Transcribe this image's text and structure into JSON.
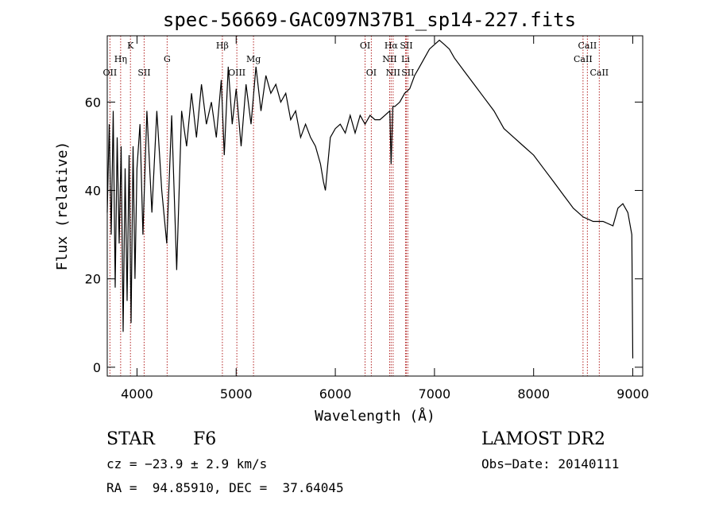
{
  "chart_data": {
    "type": "line",
    "title": "spec-56669-GAC097N37B1_sp14-227.fits",
    "xlabel": "Wavelength (Å)",
    "ylabel": "Flux (relative)",
    "xlim": [
      3700,
      9100
    ],
    "ylim": [
      -2,
      75
    ],
    "xticks": [
      4000,
      5000,
      6000,
      7000,
      8000,
      9000
    ],
    "yticks": [
      0,
      20,
      40,
      60
    ],
    "grid": false,
    "series": [
      {
        "color": "#000000",
        "points": [
          [
            3700,
            35
          ],
          [
            3720,
            55
          ],
          [
            3740,
            30
          ],
          [
            3760,
            58
          ],
          [
            3780,
            18
          ],
          [
            3800,
            52
          ],
          [
            3820,
            28
          ],
          [
            3840,
            50
          ],
          [
            3860,
            8
          ],
          [
            3880,
            45
          ],
          [
            3900,
            15
          ],
          [
            3920,
            48
          ],
          [
            3940,
            10
          ],
          [
            3960,
            50
          ],
          [
            3980,
            20
          ],
          [
            4000,
            45
          ],
          [
            4030,
            55
          ],
          [
            4060,
            30
          ],
          [
            4100,
            58
          ],
          [
            4150,
            35
          ],
          [
            4200,
            58
          ],
          [
            4250,
            40
          ],
          [
            4300,
            28
          ],
          [
            4350,
            57
          ],
          [
            4400,
            22
          ],
          [
            4450,
            58
          ],
          [
            4500,
            50
          ],
          [
            4550,
            62
          ],
          [
            4600,
            52
          ],
          [
            4650,
            64
          ],
          [
            4700,
            55
          ],
          [
            4750,
            60
          ],
          [
            4800,
            52
          ],
          [
            4850,
            65
          ],
          [
            4880,
            48
          ],
          [
            4920,
            68
          ],
          [
            4960,
            55
          ],
          [
            5000,
            63
          ],
          [
            5050,
            50
          ],
          [
            5100,
            64
          ],
          [
            5150,
            55
          ],
          [
            5200,
            68
          ],
          [
            5250,
            58
          ],
          [
            5300,
            66
          ],
          [
            5350,
            62
          ],
          [
            5400,
            64
          ],
          [
            5450,
            60
          ],
          [
            5500,
            62
          ],
          [
            5550,
            56
          ],
          [
            5600,
            58
          ],
          [
            5650,
            52
          ],
          [
            5700,
            55
          ],
          [
            5750,
            52
          ],
          [
            5800,
            50
          ],
          [
            5850,
            46
          ],
          [
            5880,
            42
          ],
          [
            5900,
            40
          ],
          [
            5920,
            45
          ],
          [
            5950,
            52
          ],
          [
            6000,
            54
          ],
          [
            6050,
            55
          ],
          [
            6100,
            53
          ],
          [
            6150,
            57
          ],
          [
            6200,
            53
          ],
          [
            6250,
            57
          ],
          [
            6300,
            55
          ],
          [
            6350,
            57
          ],
          [
            6400,
            56
          ],
          [
            6450,
            56
          ],
          [
            6500,
            57
          ],
          [
            6550,
            58
          ],
          [
            6563,
            46
          ],
          [
            6580,
            59
          ],
          [
            6600,
            59
          ],
          [
            6650,
            60
          ],
          [
            6700,
            62
          ],
          [
            6750,
            63
          ],
          [
            6800,
            66
          ],
          [
            6850,
            68
          ],
          [
            6900,
            70
          ],
          [
            6950,
            72
          ],
          [
            7000,
            73
          ],
          [
            7050,
            74
          ],
          [
            7100,
            73
          ],
          [
            7150,
            72
          ],
          [
            7200,
            70
          ],
          [
            7300,
            67
          ],
          [
            7400,
            64
          ],
          [
            7500,
            61
          ],
          [
            7600,
            58
          ],
          [
            7700,
            54
          ],
          [
            7800,
            52
          ],
          [
            7900,
            50
          ],
          [
            8000,
            48
          ],
          [
            8100,
            45
          ],
          [
            8200,
            42
          ],
          [
            8300,
            39
          ],
          [
            8400,
            36
          ],
          [
            8500,
            34
          ],
          [
            8600,
            33
          ],
          [
            8700,
            33
          ],
          [
            8800,
            32
          ],
          [
            8850,
            36
          ],
          [
            8900,
            37
          ],
          [
            8950,
            35
          ],
          [
            8990,
            30
          ],
          [
            9000,
            2
          ]
        ]
      }
    ],
    "lines": [
      {
        "label": "OII",
        "wave": 3727,
        "row": 3
      },
      {
        "label": "Hη",
        "wave": 3835,
        "row": 2
      },
      {
        "label": "K",
        "wave": 3934,
        "row": 1
      },
      {
        "label": "SII",
        "wave": 4072,
        "row": 3
      },
      {
        "label": "G",
        "wave": 4304,
        "row": 2
      },
      {
        "label": "Hβ",
        "wave": 4861,
        "row": 1
      },
      {
        "label": "OIII",
        "wave": 5007,
        "row": 3
      },
      {
        "label": "Mg",
        "wave": 5175,
        "row": 2
      },
      {
        "label": "OI",
        "wave": 6300,
        "row": 1
      },
      {
        "label": "OI",
        "wave": 6363,
        "row": 3
      },
      {
        "label": "NII",
        "wave": 6548,
        "row": 2
      },
      {
        "label": "Hα",
        "wave": 6563,
        "row": 1
      },
      {
        "label": "NII",
        "wave": 6583,
        "row": 3
      },
      {
        "label": "Li",
        "wave": 6708,
        "row": 2
      },
      {
        "label": "SII",
        "wave": 6716,
        "row": 1
      },
      {
        "label": "SII",
        "wave": 6731,
        "row": 3
      },
      {
        "label": "CaII",
        "wave": 8498,
        "row": 2
      },
      {
        "label": "CaII",
        "wave": 8542,
        "row": 1
      },
      {
        "label": "CaII",
        "wave": 8662,
        "row": 3
      }
    ],
    "line_color": "#b22222"
  },
  "info": {
    "object_class": "STAR",
    "subclass": "F6",
    "survey": "LAMOST DR2",
    "cz": "cz = −23.9 ± 2.9 km/s",
    "obs_date": "Obs−Date: 20140111",
    "coords": "RA =  94.85910, DEC =  37.64045"
  }
}
